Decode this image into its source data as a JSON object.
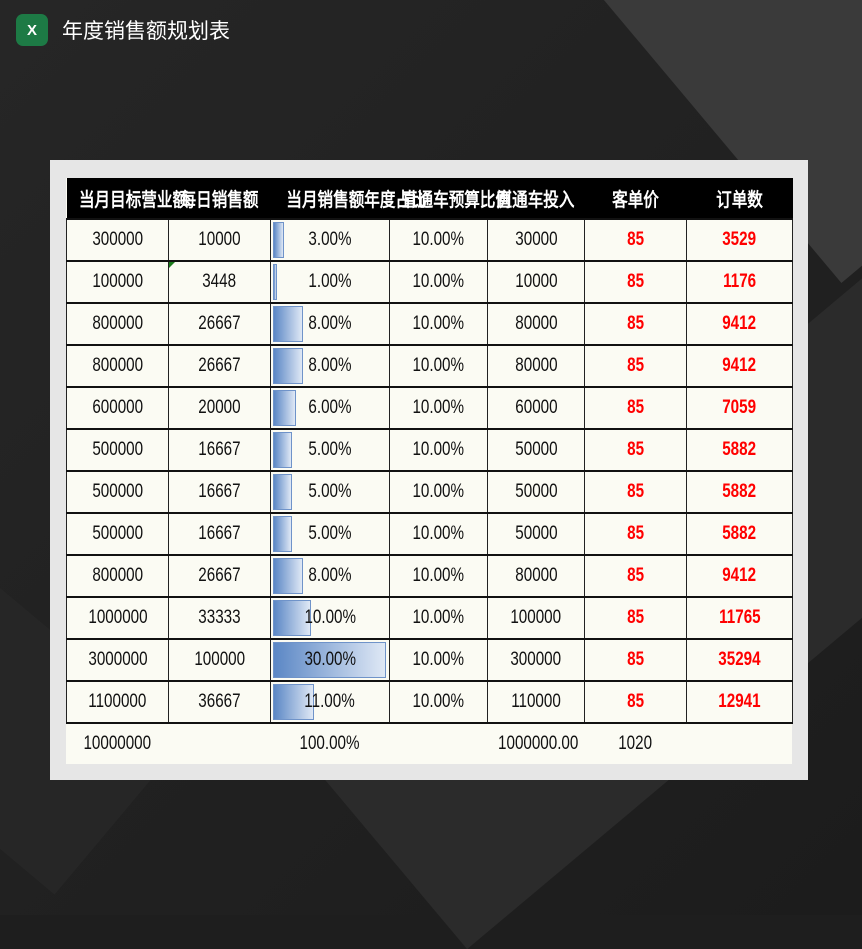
{
  "app": {
    "title": "年度销售额规划表",
    "icon": "excel-icon",
    "icon_text": "X"
  },
  "table": {
    "headers": [
      "当月目标营业额",
      "每日销售额",
      "当月销售额年度占比",
      "直通车预算比例",
      "直通车投入",
      "客单价",
      "订单数"
    ],
    "rows": [
      [
        "300000",
        "10000",
        "3.00%",
        "10.00%",
        "30000",
        "85",
        "3529"
      ],
      [
        "100000",
        "3448",
        "1.00%",
        "10.00%",
        "10000",
        "85",
        "1176"
      ],
      [
        "800000",
        "26667",
        "8.00%",
        "10.00%",
        "80000",
        "85",
        "9412"
      ],
      [
        "800000",
        "26667",
        "8.00%",
        "10.00%",
        "80000",
        "85",
        "9412"
      ],
      [
        "600000",
        "20000",
        "6.00%",
        "10.00%",
        "60000",
        "85",
        "7059"
      ],
      [
        "500000",
        "16667",
        "5.00%",
        "10.00%",
        "50000",
        "85",
        "5882"
      ],
      [
        "500000",
        "16667",
        "5.00%",
        "10.00%",
        "50000",
        "85",
        "5882"
      ],
      [
        "500000",
        "16667",
        "5.00%",
        "10.00%",
        "50000",
        "85",
        "5882"
      ],
      [
        "800000",
        "26667",
        "8.00%",
        "10.00%",
        "80000",
        "85",
        "9412"
      ],
      [
        "1000000",
        "33333",
        "10.00%",
        "10.00%",
        "100000",
        "85",
        "11765"
      ],
      [
        "3000000",
        "100000",
        "30.00%",
        "10.00%",
        "300000",
        "85",
        "35294"
      ],
      [
        "1100000",
        "36667",
        "11.00%",
        "10.00%",
        "110000",
        "85",
        "12941"
      ]
    ],
    "share_pct": [
      3,
      1,
      8,
      8,
      6,
      5,
      5,
      5,
      8,
      10,
      30,
      11
    ],
    "footer": [
      "10000000",
      "",
      "100.00%",
      "",
      "1000000.00",
      "1020",
      ""
    ]
  },
  "colors": {
    "header_bg": "#000000",
    "highlight": "#ff0000",
    "bar": "#5b87c5",
    "cell_bg": "#fbfbf3"
  }
}
